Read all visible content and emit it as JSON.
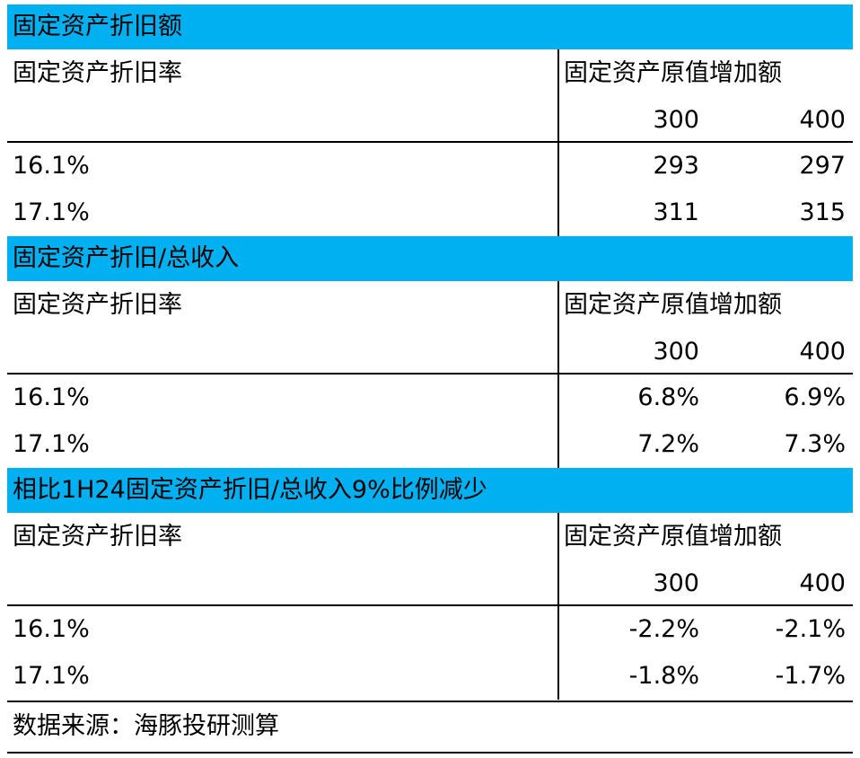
{
  "sections": [
    {
      "title": "固定资产折旧额",
      "row_header": "固定资产折旧率",
      "col_header": "固定资产原值增加额",
      "col_values": [
        "300",
        "400"
      ],
      "rows": [
        {
          "label": "16.1%",
          "values": [
            "293",
            "297"
          ]
        },
        {
          "label": "17.1%",
          "values": [
            "311",
            "315"
          ]
        }
      ]
    },
    {
      "title": "固定资产折旧/总收入",
      "row_header": "固定资产折旧率",
      "col_header": "固定资产原值增加额",
      "col_values": [
        "300",
        "400"
      ],
      "rows": [
        {
          "label": "16.1%",
          "values": [
            "6.8%",
            "6.9%"
          ]
        },
        {
          "label": "17.1%",
          "values": [
            "7.2%",
            "7.3%"
          ]
        }
      ]
    },
    {
      "title": "相比1H24固定资产折旧/总收入9%比例减少",
      "row_header": "固定资产折旧率",
      "col_header": "固定资产原值增加额",
      "col_values": [
        "300",
        "400"
      ],
      "rows": [
        {
          "label": "16.1%",
          "values": [
            "-2.2%",
            "-2.1%"
          ]
        },
        {
          "label": "17.1%",
          "values": [
            "-1.8%",
            "-1.7%"
          ]
        }
      ]
    }
  ],
  "footer": {
    "source": "数据来源：海豚投研测算"
  }
}
